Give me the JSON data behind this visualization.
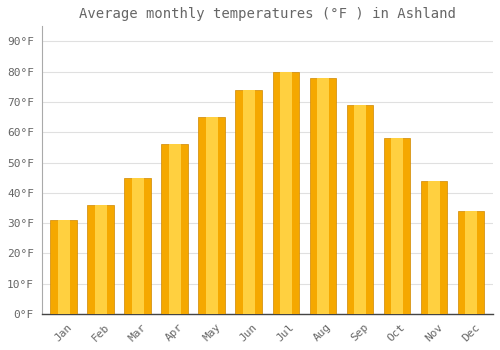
{
  "title": "Average monthly temperatures (°F ) in Ashland",
  "months": [
    "Jan",
    "Feb",
    "Mar",
    "Apr",
    "May",
    "Jun",
    "Jul",
    "Aug",
    "Sep",
    "Oct",
    "Nov",
    "Dec"
  ],
  "values": [
    31,
    36,
    45,
    56,
    65,
    74,
    80,
    78,
    69,
    58,
    44,
    34
  ],
  "bar_color_center": "#FFA500",
  "bar_color_edge": "#F0A000",
  "bar_color_highlight": "#FFD060",
  "background_color": "#FFFFFF",
  "plot_bg_color": "#FFFFFF",
  "grid_color": "#E0E0E0",
  "axis_color": "#666666",
  "text_color": "#666666",
  "yticks": [
    0,
    10,
    20,
    30,
    40,
    50,
    60,
    70,
    80,
    90
  ],
  "ylim": [
    0,
    95
  ],
  "title_fontsize": 10,
  "tick_fontsize": 8,
  "font_family": "monospace"
}
